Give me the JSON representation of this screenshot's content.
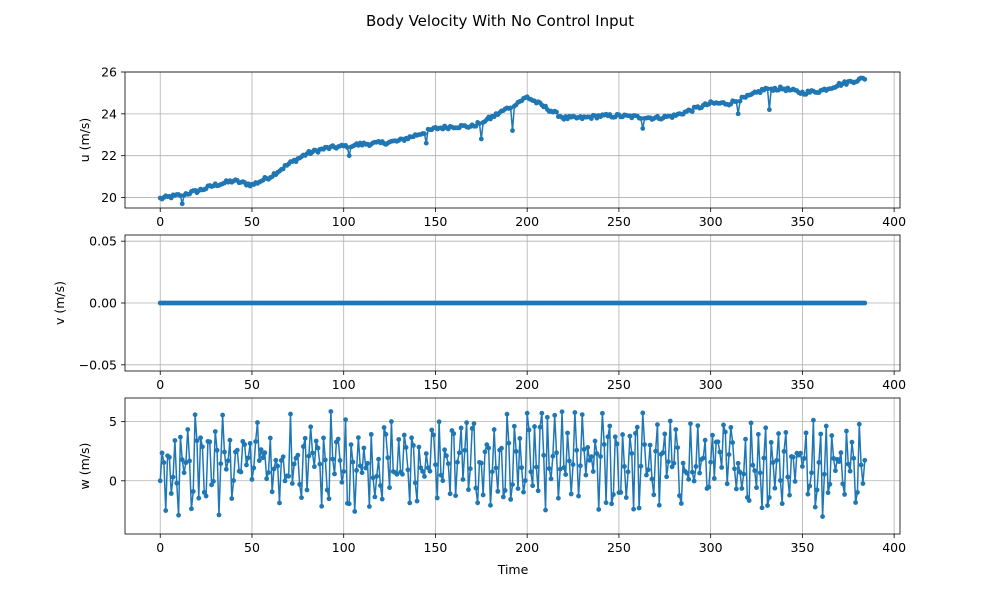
{
  "chart_data": {
    "title": "Body Velocity With No Control Input",
    "type": "line",
    "color": "#1f77b4",
    "grid": true,
    "xlabel": "Time",
    "x_range": [
      0,
      384
    ],
    "x_step": 1,
    "xlim": [
      -19.2,
      403.2
    ],
    "xticks": [
      0,
      50,
      100,
      150,
      200,
      250,
      300,
      350,
      400
    ],
    "subplots": [
      {
        "name": "u",
        "ylabel": "u (m/s)",
        "ylim": [
          19.5,
          26.0
        ],
        "yticks": [
          20,
          22,
          24,
          26
        ],
        "yticklabels": [
          "20",
          "22",
          "24",
          "26"
        ],
        "series": {
          "anchors_x": [
            0,
            10,
            20,
            30,
            40,
            50,
            60,
            70,
            80,
            90,
            100,
            110,
            120,
            130,
            140,
            150,
            160,
            170,
            180,
            190,
            200,
            210,
            220,
            230,
            240,
            250,
            260,
            270,
            280,
            290,
            300,
            310,
            320,
            330,
            340,
            350,
            360,
            370,
            384
          ],
          "anchors_y": [
            19.95,
            20.1,
            20.3,
            20.6,
            20.8,
            20.6,
            21.0,
            21.6,
            22.1,
            22.35,
            22.45,
            22.55,
            22.6,
            22.7,
            23.0,
            23.3,
            23.4,
            23.4,
            23.8,
            24.3,
            24.8,
            24.3,
            23.8,
            23.8,
            23.9,
            23.9,
            23.85,
            23.8,
            23.9,
            24.2,
            24.5,
            24.5,
            24.8,
            25.2,
            25.2,
            25.0,
            25.1,
            25.4,
            25.7
          ],
          "drops": [
            {
              "x": 12,
              "y": 19.7
            },
            {
              "x": 103,
              "y": 22.0
            },
            {
              "x": 145,
              "y": 22.6
            },
            {
              "x": 175,
              "y": 22.8
            },
            {
              "x": 192,
              "y": 23.2
            },
            {
              "x": 263,
              "y": 23.3
            },
            {
              "x": 315,
              "y": 24.0
            },
            {
              "x": 332,
              "y": 24.2
            }
          ]
        }
      },
      {
        "name": "v",
        "ylabel": "v (m/s)",
        "ylim": [
          -0.055,
          0.055
        ],
        "yticks": [
          -0.05,
          0.0,
          0.05
        ],
        "yticklabels": [
          "−0.05",
          "0.00",
          "0.05"
        ],
        "series": {
          "constant": 0.0
        }
      },
      {
        "name": "w",
        "ylabel": "w (m/s)",
        "ylim": [
          -4.5,
          7.0
        ],
        "yticks": [
          0,
          5
        ],
        "yticklabels": [
          "0",
          "5"
        ],
        "series": {
          "noise_mean": 1.5,
          "noise_amplitude": 4.2,
          "min": -3.5,
          "max": 6.4
        }
      }
    ]
  }
}
